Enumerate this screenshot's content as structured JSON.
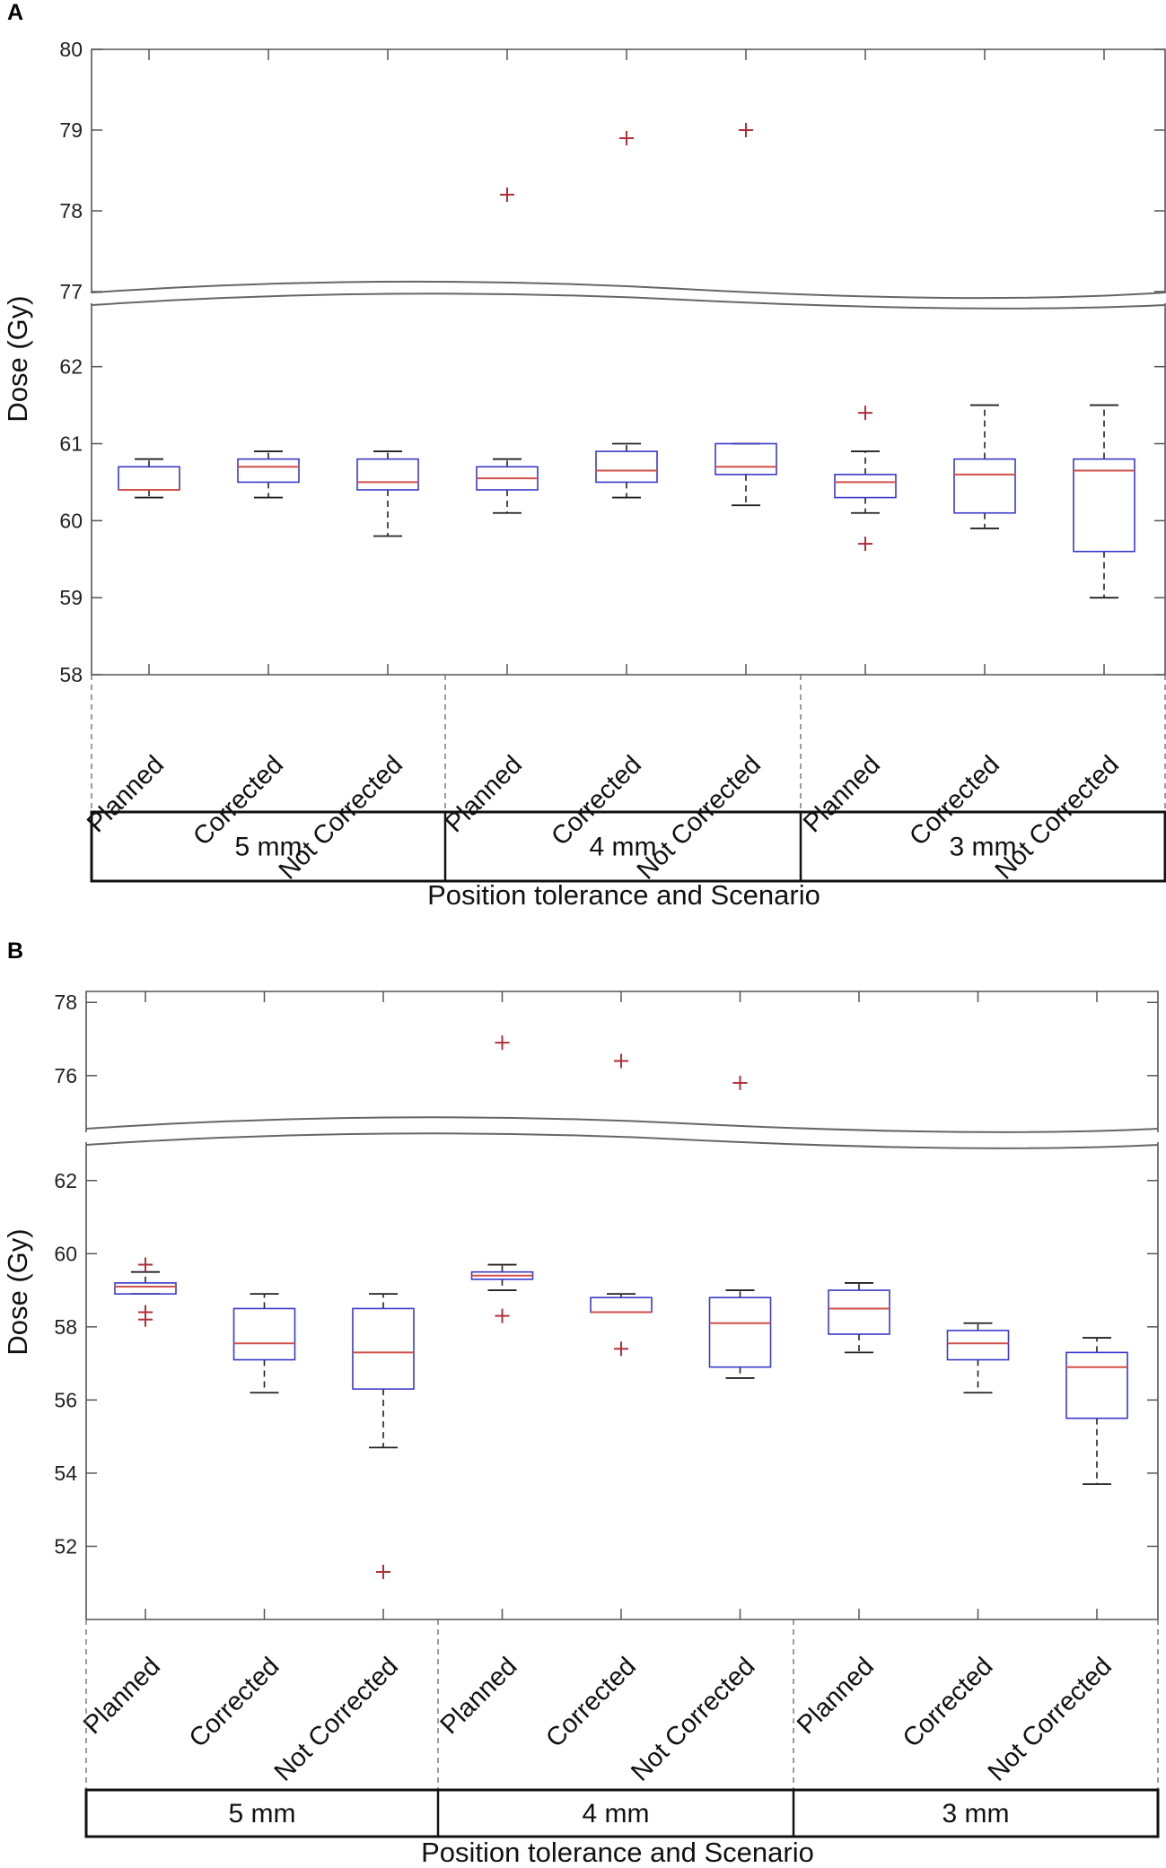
{
  "figure": {
    "x_axis_title": "Position tolerance and Scenario",
    "y_axis_title": "Dose (Gy)"
  },
  "chart_data": [
    {
      "panel": "A",
      "type": "boxplot",
      "title": "",
      "xlabel": "Position tolerance and Scenario",
      "ylabel": "Dose (Gy)",
      "broken_axis": true,
      "upper_range": [
        77,
        80
      ],
      "upper_ticks": [
        77,
        78,
        79,
        80
      ],
      "lower_range": [
        58,
        62.8
      ],
      "lower_ticks": [
        58,
        59,
        60,
        61,
        62
      ],
      "groups": [
        "5 mm",
        "4 mm",
        "3 mm"
      ],
      "categories": [
        "Planned",
        "Corrected",
        "Not Corrected",
        "Planned",
        "Corrected",
        "Not Corrected",
        "Planned",
        "Corrected",
        "Not Corrected"
      ],
      "boxes": [
        {
          "whisker_low": 60.3,
          "q1": 60.4,
          "median": 60.4,
          "q3": 60.7,
          "whisker_high": 60.8,
          "outliers": []
        },
        {
          "whisker_low": 60.3,
          "q1": 60.5,
          "median": 60.7,
          "q3": 60.8,
          "whisker_high": 60.9,
          "outliers": []
        },
        {
          "whisker_low": 59.8,
          "q1": 60.4,
          "median": 60.5,
          "q3": 60.8,
          "whisker_high": 60.9,
          "outliers": []
        },
        {
          "whisker_low": 60.1,
          "q1": 60.4,
          "median": 60.55,
          "q3": 60.7,
          "whisker_high": 60.8,
          "outliers": [
            78.2
          ]
        },
        {
          "whisker_low": 60.3,
          "q1": 60.5,
          "median": 60.65,
          "q3": 60.9,
          "whisker_high": 61.0,
          "outliers": [
            78.9
          ]
        },
        {
          "whisker_low": 60.2,
          "q1": 60.6,
          "median": 60.7,
          "q3": 61.0,
          "whisker_high": 61.0,
          "outliers": [
            79.0
          ]
        },
        {
          "whisker_low": 60.1,
          "q1": 60.3,
          "median": 60.5,
          "q3": 60.6,
          "whisker_high": 60.9,
          "outliers": [
            61.4,
            59.7
          ]
        },
        {
          "whisker_low": 59.9,
          "q1": 60.1,
          "median": 60.6,
          "q3": 60.8,
          "whisker_high": 61.5,
          "outliers": []
        },
        {
          "whisker_low": 59.0,
          "q1": 59.6,
          "median": 60.65,
          "q3": 60.8,
          "whisker_high": 61.5,
          "outliers": []
        }
      ]
    },
    {
      "panel": "B",
      "type": "boxplot",
      "title": "",
      "xlabel": "Position tolerance and Scenario",
      "ylabel": "Dose (Gy)",
      "broken_axis": true,
      "upper_range": [
        74.5,
        78.3
      ],
      "upper_ticks": [
        76,
        78
      ],
      "lower_range": [
        50.0,
        63.0
      ],
      "lower_ticks": [
        52,
        54,
        56,
        58,
        60,
        62
      ],
      "groups": [
        "5 mm",
        "4 mm",
        "3 mm"
      ],
      "categories": [
        "Planned",
        "Corrected",
        "Not Corrected",
        "Planned",
        "Corrected",
        "Not Corrected",
        "Planned",
        "Corrected",
        "Not Corrected"
      ],
      "boxes": [
        {
          "whisker_low": 58.9,
          "q1": 58.9,
          "median": 59.1,
          "q3": 59.2,
          "whisker_high": 59.5,
          "outliers": [
            59.7,
            58.4,
            58.2
          ]
        },
        {
          "whisker_low": 56.2,
          "q1": 57.1,
          "median": 57.55,
          "q3": 58.5,
          "whisker_high": 58.9,
          "outliers": []
        },
        {
          "whisker_low": 54.7,
          "q1": 56.3,
          "median": 57.3,
          "q3": 58.5,
          "whisker_high": 58.9,
          "outliers": [
            51.3
          ]
        },
        {
          "whisker_low": 59.0,
          "q1": 59.3,
          "median": 59.4,
          "q3": 59.5,
          "whisker_high": 59.7,
          "outliers": [
            58.3,
            76.9
          ]
        },
        {
          "whisker_low": 58.4,
          "q1": 58.4,
          "median": 58.4,
          "q3": 58.8,
          "whisker_high": 58.9,
          "outliers": [
            57.4,
            76.4
          ]
        },
        {
          "whisker_low": 56.6,
          "q1": 56.9,
          "median": 58.1,
          "q3": 58.8,
          "whisker_high": 59.0,
          "outliers": [
            75.8
          ]
        },
        {
          "whisker_low": 57.3,
          "q1": 57.8,
          "median": 58.5,
          "q3": 59.0,
          "whisker_high": 59.2,
          "outliers": []
        },
        {
          "whisker_low": 56.2,
          "q1": 57.1,
          "median": 57.55,
          "q3": 57.9,
          "whisker_high": 58.1,
          "outliers": []
        },
        {
          "whisker_low": 53.7,
          "q1": 55.5,
          "median": 56.9,
          "q3": 57.3,
          "whisker_high": 57.7,
          "outliers": []
        }
      ]
    }
  ]
}
